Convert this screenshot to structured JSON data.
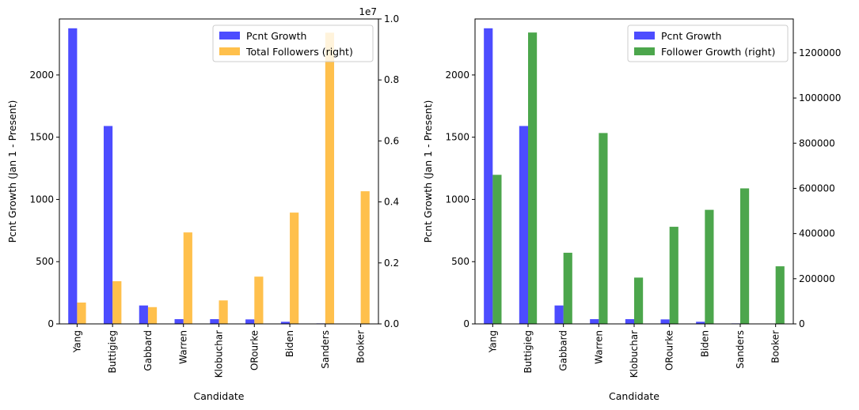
{
  "chart_data": [
    {
      "type": "bar",
      "categories": [
        "Yang",
        "Buttigieg",
        "Gabbard",
        "Warren",
        "Klobuchar",
        "ORourke",
        "Biden",
        "Sanders",
        "Booker"
      ],
      "xlabel": "Candidate",
      "ylabel": "Pcnt Growth (Jan 1 - Present)",
      "ylim": [
        0,
        2450
      ],
      "yticks": [
        "0",
        "500",
        "1000",
        "1500",
        "2000"
      ],
      "y2lim": [
        0,
        1.0
      ],
      "y2ticks": [
        "0.0",
        "0.2",
        "0.4",
        "0.6",
        "0.8",
        "1.0"
      ],
      "y2_offset_label": "1e7",
      "legend_position": "top-right",
      "series": [
        {
          "name": "Pcnt Growth",
          "axis": "left",
          "color": "#0000ff",
          "values": [
            2375,
            1590,
            148,
            38,
            38,
            36,
            17,
            4,
            3
          ]
        },
        {
          "name": "Total Followers (right)",
          "axis": "right",
          "color": "#ffa500",
          "values": [
            0.07,
            0.14,
            0.055,
            0.3,
            0.077,
            0.155,
            0.365,
            0.955,
            0.435
          ]
        }
      ]
    },
    {
      "type": "bar",
      "categories": [
        "Yang",
        "Buttigieg",
        "Gabbard",
        "Warren",
        "Klobuchar",
        "ORourke",
        "Biden",
        "Sanders",
        "Booker"
      ],
      "xlabel": "Candidate",
      "ylabel": "Pcnt Growth (Jan 1 - Present)",
      "ylim": [
        0,
        2450
      ],
      "yticks": [
        "0",
        "500",
        "1000",
        "1500",
        "2000"
      ],
      "y2lim": [
        0,
        1350000
      ],
      "y2ticks": [
        "0",
        "200000",
        "400000",
        "600000",
        "800000",
        "1000000",
        "1200000"
      ],
      "legend_position": "top-right",
      "series": [
        {
          "name": "Pcnt Growth",
          "axis": "left",
          "color": "#0000ff",
          "values": [
            2375,
            1590,
            148,
            38,
            38,
            36,
            17,
            4,
            3
          ]
        },
        {
          "name": "Follower Growth (right)",
          "axis": "right",
          "color": "#008000",
          "values": [
            660000,
            1290000,
            315000,
            845000,
            205000,
            430000,
            505000,
            600000,
            255000
          ]
        }
      ]
    }
  ]
}
